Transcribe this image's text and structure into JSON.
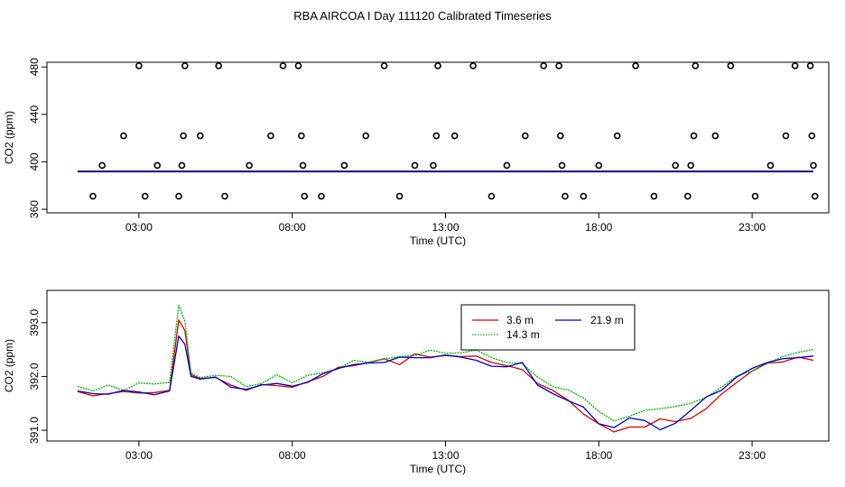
{
  "title": "RBA AIRCOA I  Day 111120  Calibrated Timeseries",
  "colors": {
    "r": "#dd0000",
    "g": "#00bb00",
    "b": "#0000cc",
    "axis": "#000000"
  },
  "chart_data": [
    {
      "type": "scatter",
      "name": "top-panel",
      "xlabel": "Time (UTC)",
      "ylabel": "CO2 (ppm)",
      "xlim": [
        0.0,
        25.5
      ],
      "ylim": [
        357,
        484
      ],
      "xticks": [
        3,
        8,
        13,
        18,
        23
      ],
      "xtick_labels": [
        "03:00",
        "08:00",
        "13:00",
        "18:00",
        "23:00"
      ],
      "yticks": [
        360,
        400,
        440,
        480
      ],
      "ytick_labels": [
        "360",
        "400",
        "440",
        "480"
      ],
      "open_circle_points": [
        [
          1.5,
          371
        ],
        [
          1.8,
          397
        ],
        [
          2.5,
          422
        ],
        [
          3.0,
          481
        ],
        [
          3.2,
          371
        ],
        [
          3.6,
          397
        ],
        [
          4.3,
          371
        ],
        [
          4.4,
          397
        ],
        [
          4.45,
          422
        ],
        [
          4.5,
          481
        ],
        [
          5.0,
          422
        ],
        [
          5.6,
          481
        ],
        [
          5.8,
          371
        ],
        [
          6.6,
          397
        ],
        [
          7.3,
          422
        ],
        [
          7.7,
          481
        ],
        [
          8.2,
          481
        ],
        [
          8.3,
          422
        ],
        [
          8.35,
          397
        ],
        [
          8.4,
          371
        ],
        [
          8.95,
          371
        ],
        [
          9.7,
          397
        ],
        [
          10.4,
          422
        ],
        [
          11.0,
          481
        ],
        [
          11.5,
          371
        ],
        [
          12.0,
          397
        ],
        [
          12.6,
          397
        ],
        [
          12.7,
          422
        ],
        [
          12.75,
          481
        ],
        [
          13.3,
          422
        ],
        [
          13.9,
          481
        ],
        [
          14.5,
          371
        ],
        [
          15.0,
          397
        ],
        [
          15.6,
          422
        ],
        [
          16.2,
          481
        ],
        [
          16.7,
          481
        ],
        [
          16.75,
          422
        ],
        [
          16.8,
          397
        ],
        [
          16.9,
          371
        ],
        [
          17.5,
          371
        ],
        [
          18.0,
          397
        ],
        [
          18.6,
          422
        ],
        [
          19.2,
          481
        ],
        [
          19.8,
          371
        ],
        [
          20.5,
          397
        ],
        [
          20.9,
          371
        ],
        [
          21.0,
          397
        ],
        [
          21.1,
          422
        ],
        [
          21.15,
          481
        ],
        [
          21.8,
          422
        ],
        [
          22.3,
          481
        ],
        [
          23.1,
          371
        ],
        [
          23.6,
          397
        ],
        [
          24.1,
          422
        ],
        [
          24.4,
          481
        ],
        [
          24.9,
          481
        ],
        [
          24.95,
          422
        ],
        [
          25.0,
          397
        ],
        [
          25.05,
          371
        ]
      ],
      "series": [
        {
          "name": "3.6 m",
          "color": "#dd0000",
          "value": 392
        },
        {
          "name": "14.3 m",
          "color": "#00bb00",
          "value": 392
        },
        {
          "name": "21.9 m",
          "color": "#0000cc",
          "value": 392
        }
      ]
    },
    {
      "type": "line",
      "name": "bottom-panel",
      "xlabel": "Time (UTC)",
      "ylabel": "CO2 (ppm)",
      "xlim": [
        0.0,
        25.5
      ],
      "ylim": [
        390.8,
        393.6
      ],
      "xticks": [
        3,
        8,
        13,
        18,
        23
      ],
      "xtick_labels": [
        "03:00",
        "08:00",
        "13:00",
        "18:00",
        "23:00"
      ],
      "yticks": [
        391.0,
        392.0,
        393.0
      ],
      "ytick_labels": [
        "391.0",
        "392.0",
        "393.0"
      ],
      "legend": {
        "position": "top-center",
        "entries": [
          {
            "label": "3.6 m",
            "color": "#dd0000",
            "style": "solid"
          },
          {
            "label": "21.9 m",
            "color": "#0000cc",
            "style": "solid"
          },
          {
            "label": "14.3 m",
            "color": "#00bb00",
            "style": "dotted"
          }
        ]
      },
      "x": [
        1.0,
        1.5,
        2.0,
        2.5,
        3.0,
        3.5,
        4.0,
        4.3,
        4.5,
        4.7,
        5.0,
        5.5,
        6.0,
        6.5,
        7.0,
        7.5,
        8.0,
        8.5,
        9.0,
        9.5,
        10.0,
        10.5,
        11.0,
        11.5,
        12.0,
        12.5,
        13.0,
        13.5,
        14.0,
        14.5,
        15.0,
        15.5,
        16.0,
        16.5,
        17.0,
        17.5,
        18.0,
        18.5,
        19.0,
        19.5,
        20.0,
        20.5,
        21.0,
        21.5,
        22.0,
        22.5,
        23.0,
        23.5,
        24.0,
        24.5,
        25.0
      ],
      "series": [
        {
          "name": "3.6 m",
          "color": "#dd0000",
          "values": [
            391.72,
            391.64,
            391.68,
            391.72,
            391.69,
            391.7,
            391.74,
            393.05,
            392.85,
            392.03,
            391.96,
            391.98,
            391.84,
            391.74,
            391.85,
            391.83,
            391.8,
            391.9,
            392.0,
            392.17,
            392.2,
            392.26,
            392.33,
            392.22,
            392.42,
            392.36,
            392.39,
            392.37,
            392.38,
            392.26,
            392.2,
            392.13,
            391.87,
            391.74,
            391.56,
            391.3,
            391.12,
            390.97,
            391.06,
            391.06,
            391.21,
            391.16,
            391.22,
            391.4,
            391.67,
            391.89,
            392.1,
            392.25,
            392.27,
            392.36,
            392.3
          ]
        },
        {
          "name": "14.3 m",
          "color": "#00bb00",
          "values": [
            391.82,
            391.73,
            391.84,
            391.74,
            391.88,
            391.86,
            391.89,
            393.32,
            393.03,
            392.06,
            391.98,
            392.02,
            392.0,
            391.81,
            391.87,
            392.03,
            391.88,
            392.02,
            392.07,
            392.14,
            392.3,
            392.26,
            392.32,
            392.37,
            392.39,
            392.49,
            392.43,
            392.44,
            392.49,
            392.35,
            392.26,
            392.24,
            391.99,
            391.81,
            391.75,
            391.6,
            391.35,
            391.17,
            391.26,
            391.37,
            391.4,
            391.44,
            391.5,
            391.61,
            391.8,
            392.01,
            392.1,
            392.24,
            392.37,
            392.45,
            392.5
          ]
        },
        {
          "name": "21.9 m",
          "color": "#0000cc",
          "values": [
            391.73,
            391.68,
            391.67,
            391.74,
            391.71,
            391.66,
            391.73,
            392.75,
            392.6,
            392.0,
            391.95,
            391.99,
            391.8,
            391.76,
            391.84,
            391.87,
            391.82,
            391.89,
            392.05,
            392.15,
            392.22,
            392.25,
            392.26,
            392.36,
            392.35,
            392.35,
            392.4,
            392.36,
            392.3,
            392.19,
            392.18,
            392.26,
            391.84,
            391.68,
            391.55,
            391.43,
            391.12,
            391.05,
            391.23,
            391.18,
            391.01,
            391.13,
            391.37,
            391.62,
            391.74,
            391.99,
            392.15,
            392.26,
            392.33,
            392.35,
            392.38
          ]
        }
      ]
    }
  ]
}
